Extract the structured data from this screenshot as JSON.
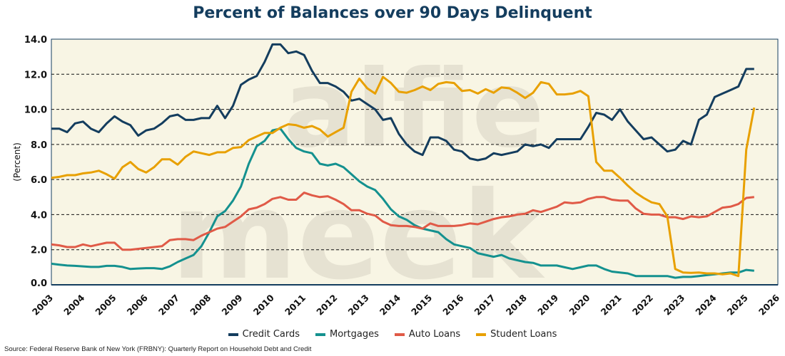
{
  "chart_data": {
    "type": "line",
    "title": "Percent of Balances over 90 Days Delinquent",
    "xlabel": "",
    "ylabel": "(Percent)",
    "ylim": [
      0,
      14
    ],
    "xlim": [
      2003,
      2026
    ],
    "x_start": 2003.0,
    "x_step": 0.25,
    "grid": "horizontal dashed",
    "legend_position": "bottom",
    "y_ticks": [
      "0.0",
      "2.0",
      "4.0",
      "6.0",
      "8.0",
      "10.0",
      "12.0",
      "14.0"
    ],
    "x_ticks": [
      "2003",
      "2004",
      "2005",
      "2006",
      "2007",
      "2008",
      "2009",
      "2010",
      "2011",
      "2012",
      "2013",
      "2014",
      "2015",
      "2016",
      "2017",
      "2018",
      "2019",
      "2020",
      "2021",
      "2022",
      "2023",
      "2024",
      "2025",
      "2026"
    ],
    "series": [
      {
        "name": "Credit Cards",
        "color": "#143d5e",
        "values": [
          8.9,
          8.9,
          8.7,
          9.2,
          9.3,
          8.9,
          8.7,
          9.2,
          9.6,
          9.3,
          9.1,
          8.5,
          8.8,
          8.9,
          9.2,
          9.6,
          9.7,
          9.4,
          9.4,
          9.5,
          9.5,
          10.2,
          9.5,
          10.2,
          11.4,
          11.7,
          11.9,
          12.7,
          13.7,
          13.7,
          13.2,
          13.3,
          13.1,
          12.2,
          11.5,
          11.5,
          11.3,
          11.0,
          10.5,
          10.6,
          10.3,
          10.0,
          9.4,
          9.5,
          8.6,
          8.0,
          7.6,
          7.4,
          8.4,
          8.4,
          8.2,
          7.7,
          7.6,
          7.2,
          7.1,
          7.2,
          7.5,
          7.4,
          7.5,
          7.6,
          8.0,
          7.9,
          8.0,
          7.8,
          8.3,
          8.3,
          8.3,
          8.3,
          9.0,
          9.8,
          9.7,
          9.4,
          10.0,
          9.3,
          8.8,
          8.3,
          8.4,
          8.0,
          7.6,
          7.7,
          8.2,
          8.0,
          9.4,
          9.7,
          10.7,
          10.9,
          11.1,
          11.3,
          12.3,
          12.3
        ]
      },
      {
        "name": "Mortgages",
        "color": "#14918f",
        "values": [
          1.2,
          1.15,
          1.1,
          1.08,
          1.05,
          1.02,
          1.02,
          1.08,
          1.08,
          1.02,
          0.9,
          0.93,
          0.95,
          0.95,
          0.9,
          1.05,
          1.3,
          1.5,
          1.7,
          2.2,
          3.0,
          3.9,
          4.2,
          4.8,
          5.6,
          6.9,
          7.9,
          8.2,
          8.8,
          8.9,
          8.3,
          7.8,
          7.6,
          7.5,
          6.9,
          6.8,
          6.9,
          6.7,
          6.3,
          5.9,
          5.6,
          5.4,
          4.9,
          4.3,
          3.9,
          3.7,
          3.4,
          3.2,
          3.1,
          3.0,
          2.6,
          2.3,
          2.2,
          2.1,
          1.8,
          1.7,
          1.6,
          1.7,
          1.5,
          1.4,
          1.3,
          1.25,
          1.1,
          1.1,
          1.1,
          1.0,
          0.9,
          1.0,
          1.1,
          1.1,
          0.9,
          0.75,
          0.7,
          0.65,
          0.5,
          0.5,
          0.5,
          0.5,
          0.5,
          0.4,
          0.45,
          0.45,
          0.5,
          0.55,
          0.6,
          0.65,
          0.7,
          0.7,
          0.85,
          0.8
        ]
      },
      {
        "name": "Auto Loans",
        "color": "#e05a47",
        "values": [
          2.3,
          2.25,
          2.15,
          2.15,
          2.3,
          2.2,
          2.3,
          2.4,
          2.4,
          2.0,
          2.0,
          2.05,
          2.1,
          2.15,
          2.2,
          2.55,
          2.6,
          2.6,
          2.55,
          2.8,
          3.0,
          3.2,
          3.3,
          3.6,
          3.9,
          4.3,
          4.4,
          4.6,
          4.9,
          5.0,
          4.85,
          4.85,
          5.25,
          5.1,
          5.0,
          5.05,
          4.85,
          4.6,
          4.25,
          4.25,
          4.05,
          3.95,
          3.6,
          3.4,
          3.35,
          3.35,
          3.3,
          3.2,
          3.5,
          3.35,
          3.35,
          3.35,
          3.4,
          3.5,
          3.45,
          3.6,
          3.75,
          3.85,
          3.9,
          4.0,
          4.05,
          4.25,
          4.15,
          4.3,
          4.45,
          4.7,
          4.65,
          4.7,
          4.9,
          5.0,
          5.0,
          4.85,
          4.8,
          4.8,
          4.35,
          4.05,
          4.0,
          4.0,
          3.85,
          3.85,
          3.75,
          3.9,
          3.85,
          3.9,
          4.15,
          4.4,
          4.45,
          4.6,
          4.95,
          5.0
        ]
      },
      {
        "name": "Student Loans",
        "color": "#e8a000",
        "values": [
          6.1,
          6.15,
          6.25,
          6.25,
          6.35,
          6.4,
          6.5,
          6.3,
          6.05,
          6.7,
          7.0,
          6.6,
          6.4,
          6.7,
          7.15,
          7.15,
          6.85,
          7.3,
          7.6,
          7.5,
          7.4,
          7.55,
          7.55,
          7.8,
          7.85,
          8.25,
          8.45,
          8.65,
          8.65,
          8.95,
          9.15,
          9.1,
          8.95,
          9.05,
          8.85,
          8.45,
          8.7,
          8.95,
          11.0,
          11.75,
          11.2,
          10.9,
          11.85,
          11.5,
          11.0,
          10.95,
          11.1,
          11.3,
          11.1,
          11.45,
          11.55,
          11.5,
          11.05,
          11.1,
          10.9,
          11.15,
          10.95,
          11.25,
          11.2,
          10.95,
          10.65,
          10.95,
          11.55,
          11.45,
          10.85,
          10.85,
          10.9,
          11.05,
          10.75,
          7.0,
          6.5,
          6.5,
          6.1,
          5.65,
          5.25,
          4.95,
          4.7,
          4.6,
          3.9,
          0.9,
          0.7,
          0.68,
          0.7,
          0.65,
          0.65,
          0.6,
          0.65,
          0.5,
          7.7,
          10.1
        ]
      }
    ]
  },
  "watermark": "alfie meek",
  "source": "Source: Federal Reserve Bank of New York (FRBNY): Quarterly Report on Household Debt and Credit"
}
